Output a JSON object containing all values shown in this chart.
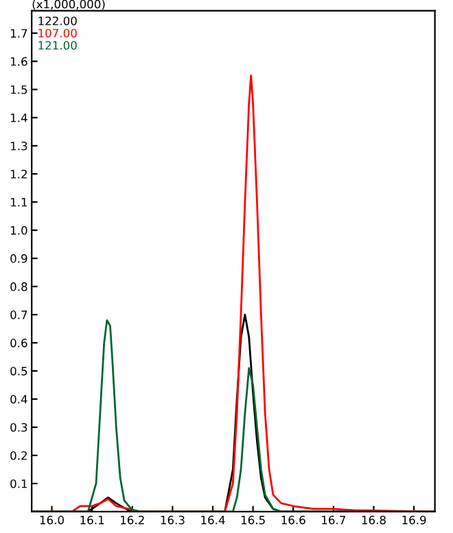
{
  "chart_data": {
    "type": "line",
    "annotations": [
      "(x1,000,000)"
    ],
    "xlim": [
      15.95,
      16.952
    ],
    "xticks": [
      {
        "value": 16,
        "label": "16.0"
      },
      16.1,
      16.2,
      16.3,
      16.4,
      16.5,
      16.6,
      16.7,
      16.8,
      16.9
    ],
    "ylim": [
      0,
      1.78
    ],
    "yticks": [
      0.1,
      0.2,
      0.3,
      0.4,
      0.5,
      0.6,
      0.7,
      0.8,
      0.9,
      {
        "value": 1,
        "label": "1.0"
      },
      1.1,
      1.2,
      1.3,
      1.4,
      1.5,
      1.6,
      1.7
    ],
    "grid": false,
    "legend": "top left",
    "marker": "none",
    "line_style": "solid",
    "series": [
      {
        "name": "122.00",
        "color": "#000000",
        "x": [
          15.95,
          16.09,
          16.12,
          16.14,
          16.16,
          16.19,
          16.2,
          16.43,
          16.45,
          16.46,
          16.47,
          16.48,
          16.49,
          16.5,
          16.51,
          16.52,
          16.53,
          16.55,
          16.57,
          16.952
        ],
        "values": [
          0,
          0,
          0.03,
          0.05,
          0.03,
          0.005,
          0,
          0,
          0.15,
          0.4,
          0.62,
          0.7,
          0.62,
          0.42,
          0.25,
          0.12,
          0.05,
          0.01,
          0,
          0
        ]
      },
      {
        "name": "107.00",
        "color": "#ff0000",
        "x": [
          15.95,
          16.05,
          16.07,
          16.1,
          16.12,
          16.14,
          16.16,
          16.19,
          16.22,
          16.43,
          16.45,
          16.46,
          16.47,
          16.48,
          16.49,
          16.495,
          16.5,
          16.51,
          16.52,
          16.53,
          16.54,
          16.55,
          16.57,
          16.6,
          16.65,
          16.7,
          16.75,
          16.952
        ],
        "values": [
          0,
          0,
          0.02,
          0.02,
          0.03,
          0.045,
          0.02,
          0.01,
          0,
          0,
          0.1,
          0.35,
          0.7,
          1.1,
          1.45,
          1.55,
          1.45,
          1.1,
          0.7,
          0.35,
          0.15,
          0.06,
          0.03,
          0.02,
          0.01,
          0.01,
          0.005,
          0
        ]
      },
      {
        "name": "121.00",
        "color": "#006633",
        "x": [
          15.95,
          16.09,
          16.11,
          16.12,
          16.13,
          16.137,
          16.145,
          16.15,
          16.16,
          16.17,
          16.18,
          16.2,
          16.22,
          16.45,
          16.46,
          16.47,
          16.48,
          16.49,
          16.5,
          16.51,
          16.52,
          16.53,
          16.55,
          16.57,
          16.952
        ],
        "values": [
          0,
          0,
          0.1,
          0.35,
          0.6,
          0.68,
          0.66,
          0.55,
          0.3,
          0.12,
          0.04,
          0.005,
          0,
          0,
          0.05,
          0.15,
          0.35,
          0.51,
          0.45,
          0.3,
          0.15,
          0.06,
          0.01,
          0,
          0
        ]
      }
    ]
  }
}
